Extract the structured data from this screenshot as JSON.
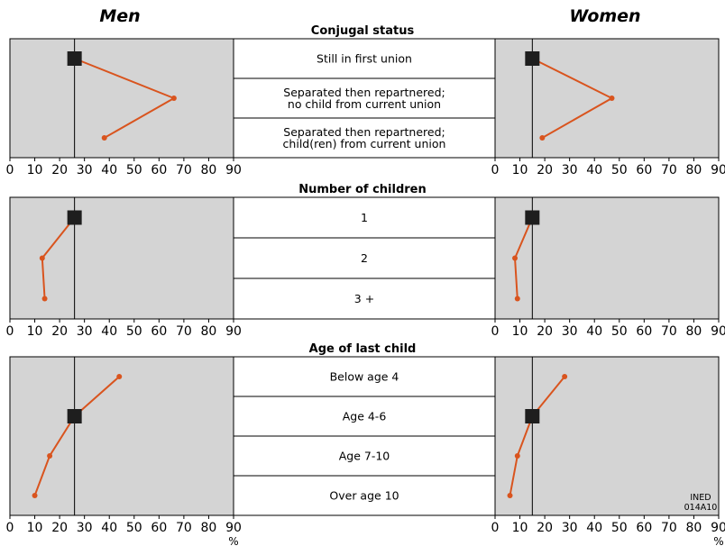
{
  "headers": {
    "left": "Men",
    "right": "Women"
  },
  "credit": [
    "INED",
    "014A10"
  ],
  "unit_label": "%",
  "colors": {
    "panel_bg": "#d4d4d4",
    "line": "#d9541e",
    "marker": "#1e1e1e",
    "center_bg": "#ffffff"
  },
  "chart_data": [
    {
      "type": "line",
      "title": "Conjugal status",
      "categories": [
        "Still in first union",
        "Separated then repartnered;\nno child from current union",
        "Separated then repartnered;\nchild(ren) from current union"
      ],
      "series": [
        {
          "name": "Men",
          "values": [
            26,
            66,
            38
          ],
          "reference": 26
        },
        {
          "name": "Women",
          "values": [
            15,
            47,
            19
          ],
          "reference": 15
        }
      ],
      "xlim": [
        0,
        90
      ],
      "xticks": [
        0,
        10,
        20,
        30,
        40,
        50,
        60,
        70,
        80,
        90
      ]
    },
    {
      "type": "line",
      "title": "Number of children",
      "categories": [
        "1",
        "2",
        "3 +"
      ],
      "series": [
        {
          "name": "Men",
          "values": [
            26,
            13,
            14
          ],
          "reference": 26
        },
        {
          "name": "Women",
          "values": [
            15,
            8,
            9
          ],
          "reference": 15
        }
      ],
      "xlim": [
        0,
        90
      ],
      "xticks": [
        0,
        10,
        20,
        30,
        40,
        50,
        60,
        70,
        80,
        90
      ]
    },
    {
      "type": "line",
      "title": "Age of last child",
      "categories": [
        "Below age 4",
        "Age 4-6",
        "Age 7-10",
        "Over age 10"
      ],
      "series": [
        {
          "name": "Men",
          "values": [
            44,
            26,
            16,
            10
          ],
          "reference": 26
        },
        {
          "name": "Women",
          "values": [
            28,
            15,
            9,
            6
          ],
          "reference": 15
        }
      ],
      "xlim": [
        0,
        90
      ],
      "xticks": [
        0,
        10,
        20,
        30,
        40,
        50,
        60,
        70,
        80,
        90
      ]
    }
  ]
}
